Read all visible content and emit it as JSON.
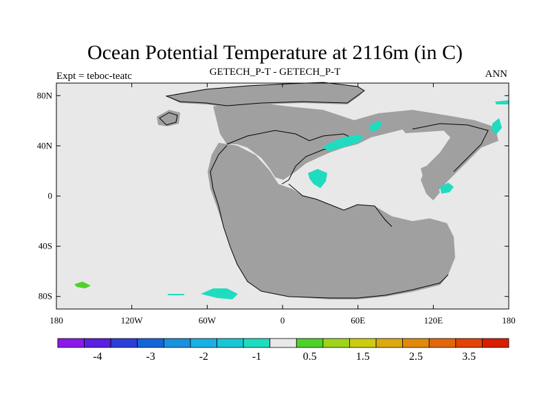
{
  "figure": {
    "title": "Ocean Potential Temperature at 2116m (in C)",
    "left_label": "Expt = teboc-teatc",
    "center_label": "GETECH_P-T - GETECH_P-T",
    "right_label": "ANN"
  },
  "map": {
    "projection": "cylindrical equidistant",
    "lon_range": [
      -180,
      180
    ],
    "lat_range": [
      -90,
      90
    ],
    "lon_ticks": [
      {
        "value": -180,
        "label": "180"
      },
      {
        "value": -120,
        "label": "120W"
      },
      {
        "value": -60,
        "label": "60W"
      },
      {
        "value": 0,
        "label": "0"
      },
      {
        "value": 60,
        "label": "60E"
      },
      {
        "value": 120,
        "label": "120E"
      },
      {
        "value": 180,
        "label": "180"
      }
    ],
    "lat_ticks": [
      {
        "value": 80,
        "label": "80N"
      },
      {
        "value": 40,
        "label": "40N"
      },
      {
        "value": 0,
        "label": "0"
      },
      {
        "value": -40,
        "label": "40S"
      },
      {
        "value": -80,
        "label": "80S"
      }
    ]
  },
  "colorbar": {
    "labels": [
      "-4",
      "-3",
      "-2",
      "-1",
      "0.5",
      "1.5",
      "2.5",
      "3.5"
    ],
    "colors": [
      "#8a1be6",
      "#5a1fe0",
      "#2b3fd6",
      "#1466d8",
      "#1a90df",
      "#1bb0e3",
      "#19c6d6",
      "#1fdcc0",
      "#e8e8e8",
      "#4fd12a",
      "#9fd31c",
      "#cccc12",
      "#dcaa10",
      "#e08a0c",
      "#e0680a",
      "#e04406",
      "#d81e02"
    ]
  },
  "colors": {
    "land": "#a0a0a0",
    "ocean": "#e8e8e8",
    "anomaly_negative": "#1fdcc0",
    "anomaly_positive": "#4fd12a"
  }
}
